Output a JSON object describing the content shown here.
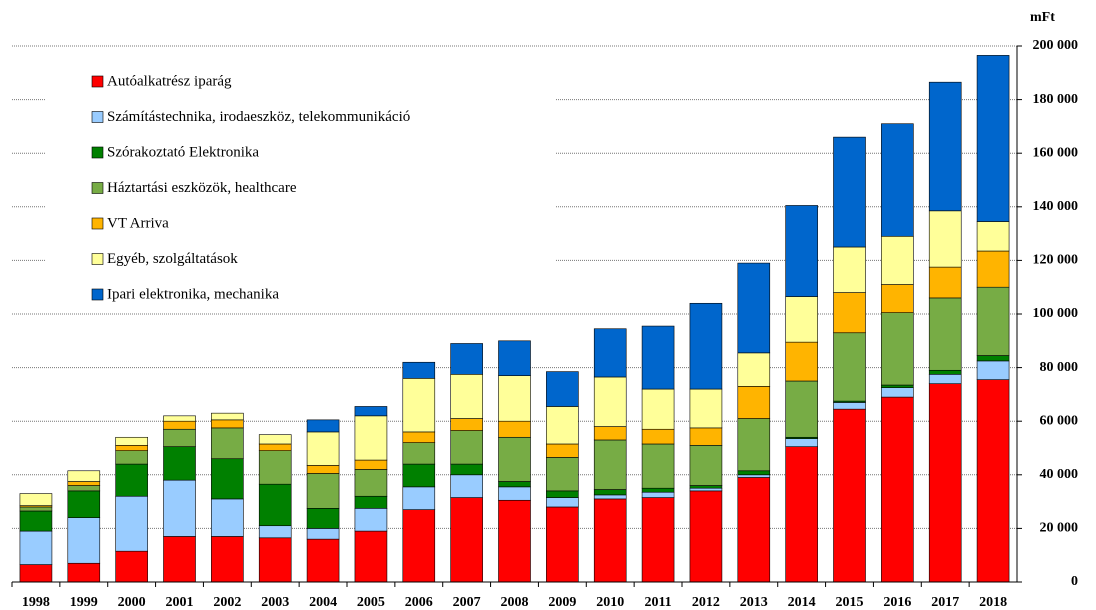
{
  "chart_data": {
    "type": "stacked_bar",
    "y_axis_label": "mFt",
    "categories": [
      "1998",
      "1999",
      "2000",
      "2001",
      "2002",
      "2003",
      "2004",
      "2005",
      "2006",
      "2007",
      "2008",
      "2009",
      "2010",
      "2011",
      "2012",
      "2013",
      "2014",
      "2015",
      "2016",
      "2017",
      "2018"
    ],
    "series": [
      {
        "name": "Autóalkatrész iparág",
        "color": "#ff0000",
        "values": [
          6500,
          7000,
          11500,
          17000,
          17000,
          16500,
          16000,
          19000,
          27000,
          31500,
          30500,
          28000,
          31000,
          31500,
          34000,
          39000,
          50500,
          64500,
          69000,
          74000,
          75500
        ]
      },
      {
        "name": "Számítástechnika, irodaeszköz, telekommunikáció",
        "color": "#99ccff",
        "values": [
          12500,
          17000,
          20500,
          21000,
          14000,
          4500,
          4000,
          8500,
          8500,
          8500,
          5000,
          3500,
          1500,
          2000,
          1000,
          1000,
          3000,
          2500,
          3500,
          3500,
          7000
        ]
      },
      {
        "name": "Szórakoztató Elektronika",
        "color": "#008000",
        "values": [
          7500,
          10000,
          12000,
          12500,
          15000,
          15500,
          7500,
          4500,
          8500,
          4000,
          2000,
          2500,
          2000,
          1500,
          1000,
          1500,
          500,
          500,
          1000,
          1500,
          2000
        ]
      },
      {
        "name": "Háztartási eszközök, healthcare",
        "color": "#77ac45",
        "values": [
          1500,
          2000,
          5000,
          6500,
          11500,
          12500,
          13000,
          10000,
          8000,
          12500,
          16500,
          12500,
          18500,
          16500,
          15000,
          19500,
          21000,
          25500,
          27000,
          27000,
          25500
        ]
      },
      {
        "name": "VT Arriva",
        "color": "#ffb400",
        "values": [
          500,
          1500,
          2000,
          3000,
          3000,
          2500,
          3000,
          3500,
          4000,
          4500,
          6000,
          5000,
          5000,
          5500,
          6500,
          12000,
          14500,
          15000,
          10500,
          11500,
          13500
        ]
      },
      {
        "name": "Egyéb, szolgáltatások",
        "color": "#ffff99",
        "values": [
          4500,
          4000,
          3000,
          2000,
          2500,
          3500,
          12500,
          16500,
          20000,
          16500,
          17000,
          14000,
          18500,
          15000,
          14500,
          12500,
          17000,
          17000,
          18000,
          21000,
          11000
        ]
      },
      {
        "name": "Ipari elektronika, mechanika",
        "color": "#0066cc",
        "values": [
          0,
          0,
          0,
          0,
          0,
          0,
          4500,
          3500,
          6000,
          11500,
          13000,
          13000,
          18000,
          23500,
          32000,
          33500,
          34000,
          41000,
          42000,
          48000,
          62000
        ]
      }
    ],
    "ylim": [
      0,
      200000
    ],
    "yticks": [
      0,
      {
        "value": 20000,
        "label": "20 000"
      },
      {
        "value": 40000,
        "label": "40 000"
      },
      {
        "value": 60000,
        "label": "60 000"
      },
      {
        "value": 80000,
        "label": "80 000"
      },
      {
        "value": 100000,
        "label": "100 000"
      },
      {
        "value": 120000,
        "label": "120 000"
      },
      {
        "value": 140000,
        "label": "140 000"
      },
      {
        "value": 160000,
        "label": "160 000"
      },
      {
        "value": 180000,
        "label": "180 000"
      },
      {
        "value": 200000,
        "label": "200 000"
      }
    ],
    "grid": true,
    "legend": "top-left"
  }
}
